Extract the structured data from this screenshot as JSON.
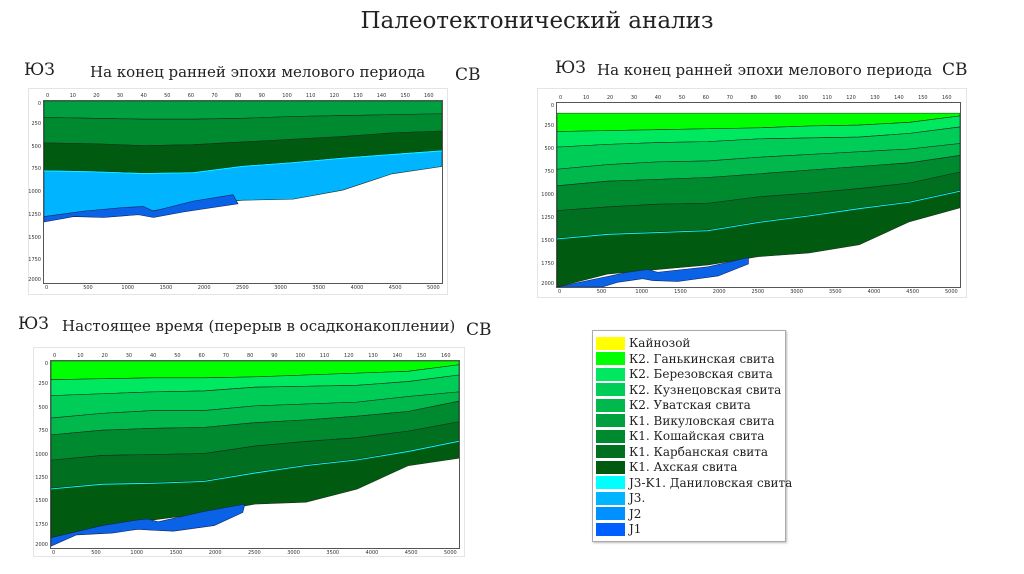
{
  "title": "Палеотектонический анализ",
  "panels": [
    {
      "sw": "ЮЗ",
      "ne": "СВ",
      "caption": "На конец ранней эпохи мелового периода"
    },
    {
      "sw": "ЮЗ",
      "ne": "СВ",
      "caption": "На конец ранней эпохи мелового периода"
    },
    {
      "sw": "ЮЗ",
      "ne": "СВ",
      "caption": "Настоящее время (перерыв в осадконакоплении)"
    }
  ],
  "axes": {
    "top_ticks": [
      "0",
      "10",
      "20",
      "30",
      "40",
      "50",
      "60",
      "70",
      "80",
      "90",
      "100",
      "110",
      "120",
      "130",
      "140",
      "150",
      "160"
    ],
    "bottom_ticks": [
      "0",
      "500",
      "1000",
      "1500",
      "2000",
      "2500",
      "3000",
      "3500",
      "4000",
      "4500",
      "5000"
    ],
    "depth_ticks": [
      "0",
      "250",
      "500",
      "750",
      "1000",
      "1250",
      "1500",
      "1750",
      "2000"
    ]
  },
  "legend": [
    {
      "label": "Кайнозой",
      "color": "#ffff00"
    },
    {
      "label": "К2. Ганькинская свита",
      "color": "#00ff00"
    },
    {
      "label": "К2. Березовская свита",
      "color": "#00e860"
    },
    {
      "label": "К2. Кузнецовская свита",
      "color": "#00cc58"
    },
    {
      "label": "К2. Уватская свита",
      "color": "#00b84c"
    },
    {
      "label": "К1. Викуловская свита",
      "color": "#00a040"
    },
    {
      "label": "К1. Кошайская свита",
      "color": "#008a30"
    },
    {
      "label": "К1. Карбанская свита",
      "color": "#007020"
    },
    {
      "label": "К1. Ахская свита",
      "color": "#005a10"
    },
    {
      "label": "J3-K1. Даниловская свита",
      "color": "#00ffff"
    },
    {
      "label": "J3.",
      "color": "#00b4ff"
    },
    {
      "label": "J2",
      "color": "#0090ff"
    },
    {
      "label": "J1",
      "color": "#0060ff"
    }
  ]
}
